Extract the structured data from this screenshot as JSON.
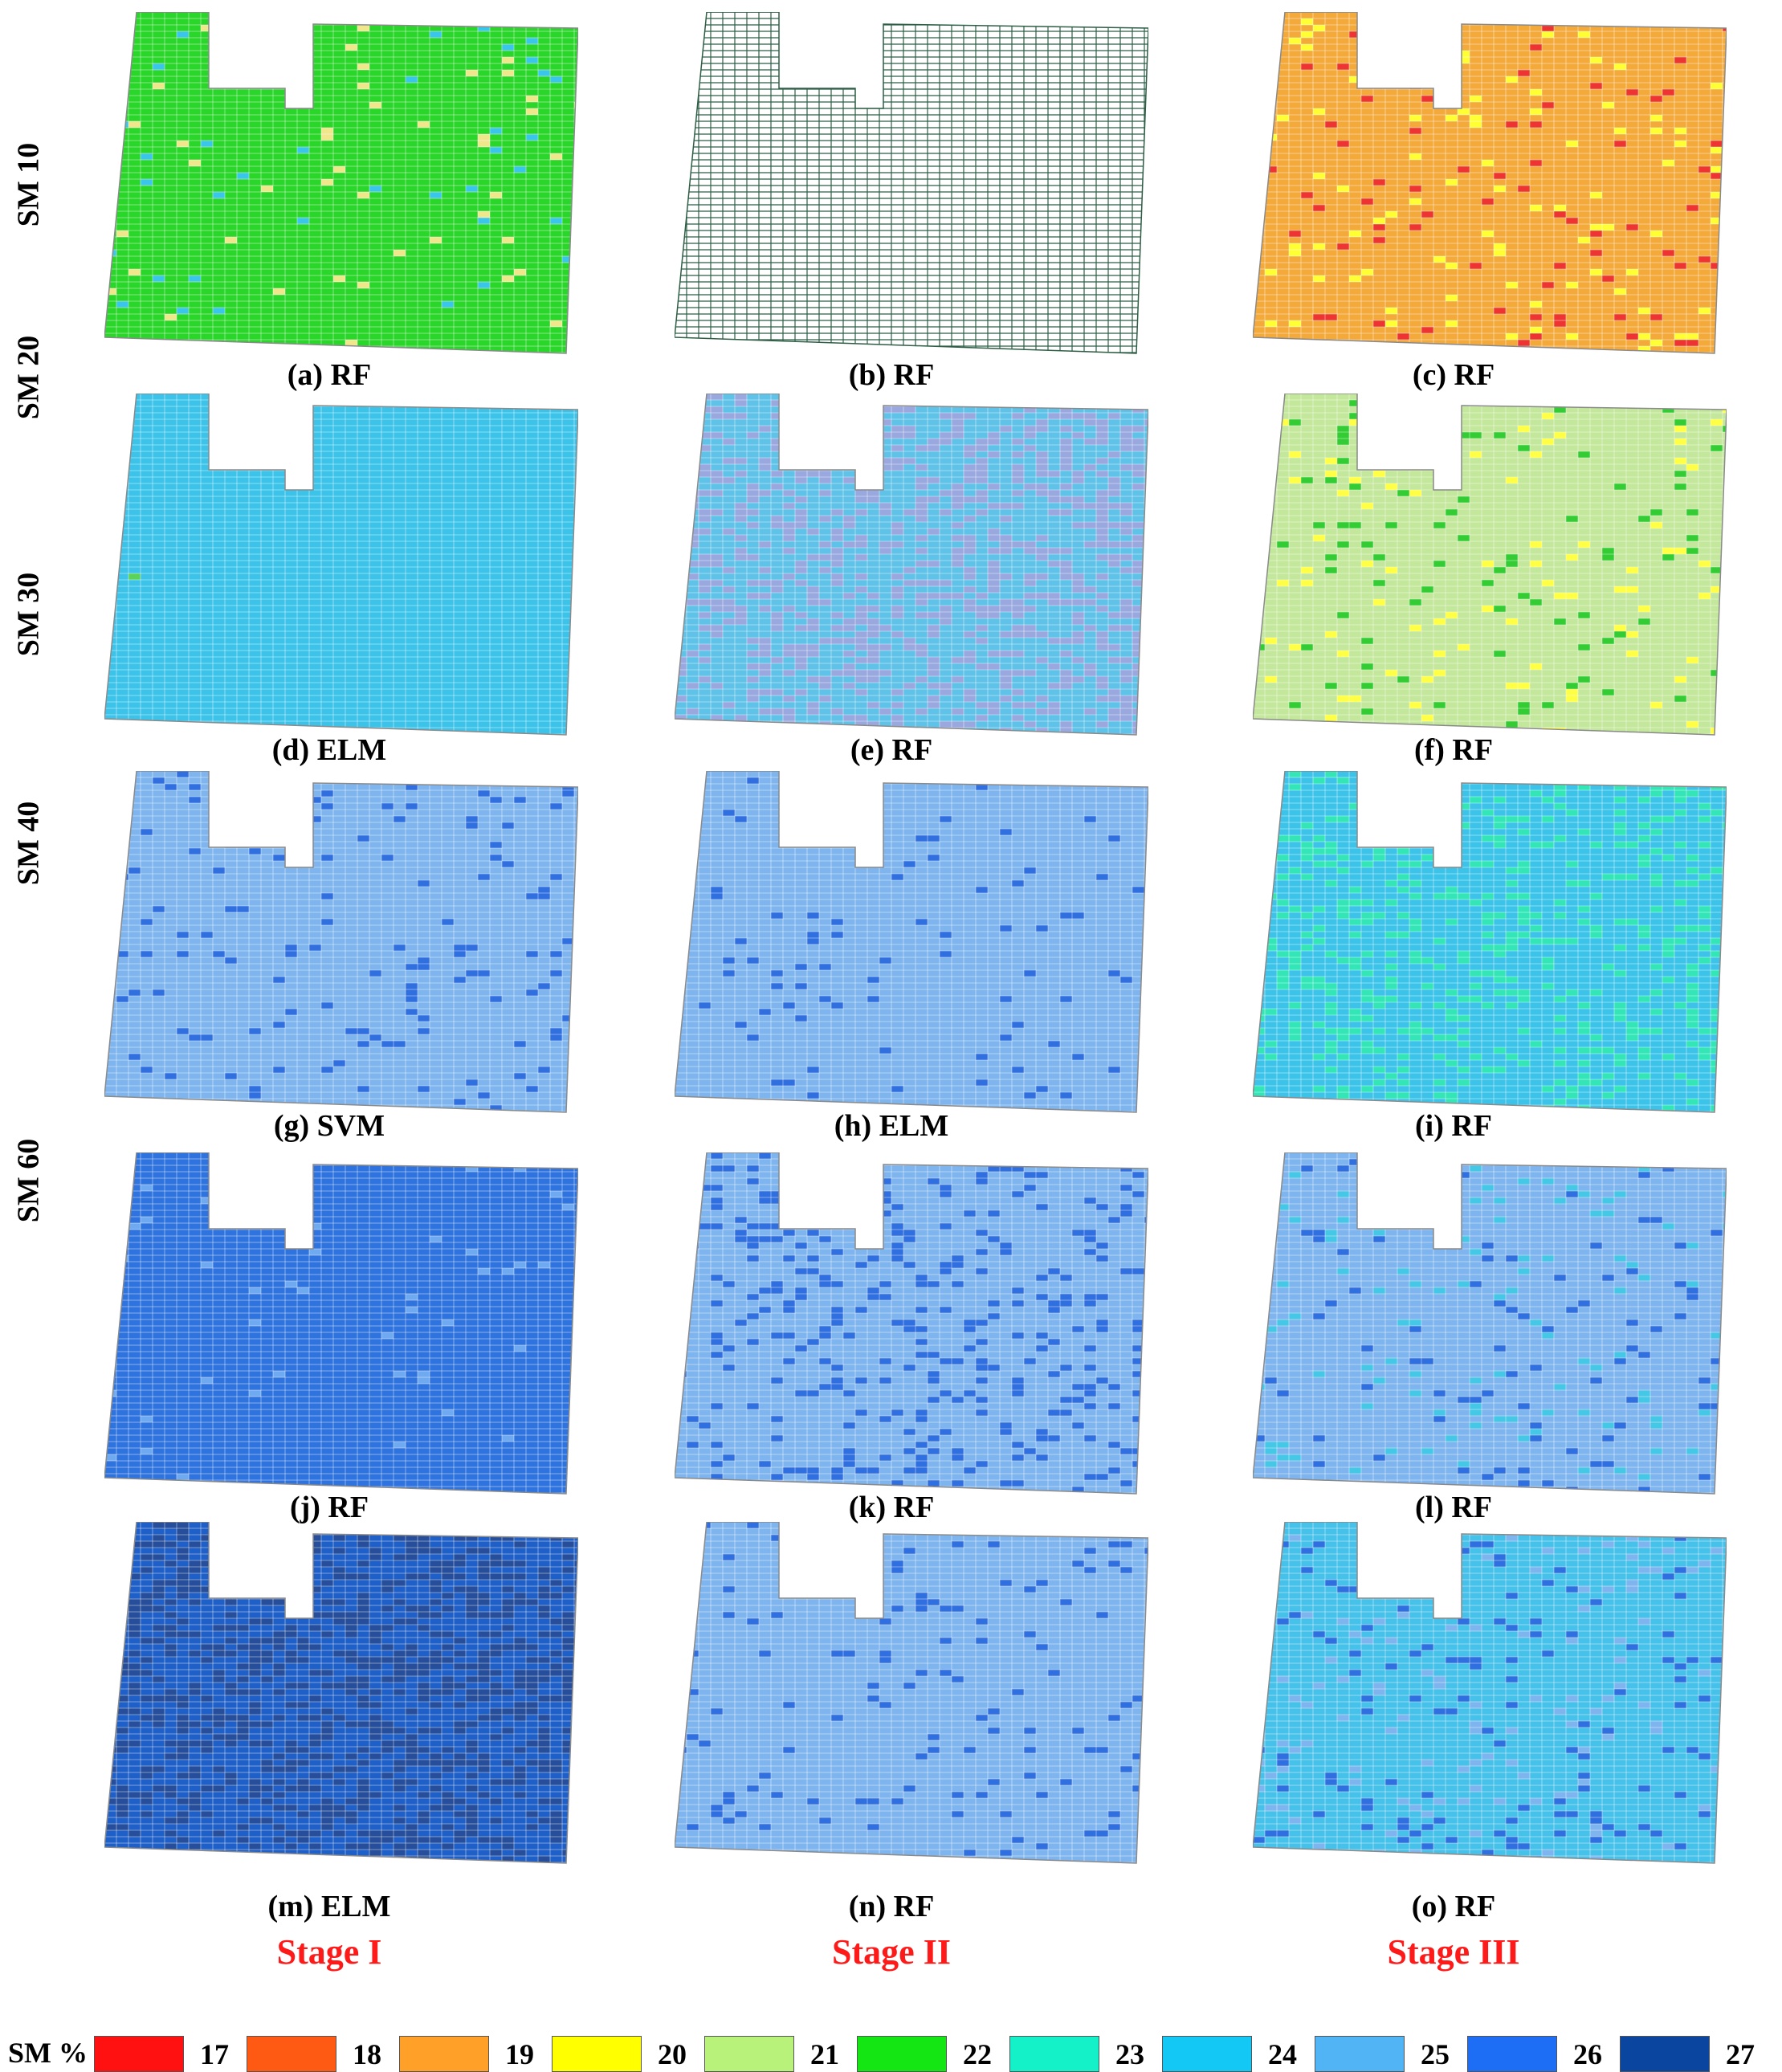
{
  "rows": [
    "SM 10",
    "SM 20",
    "SM 30",
    "SM 40",
    "SM 60"
  ],
  "stages": [
    "Stage I",
    "Stage II",
    "Stage III"
  ],
  "stage_color": "#ff1a1a",
  "panels": [
    {
      "label": "(a) RF",
      "base": "#2ad62a",
      "accents": [
        "#f0e68c",
        "#39c6ea"
      ],
      "rate": 0.03
    },
    {
      "label": "(b) RF",
      "base": "#ffffff",
      "accents": [],
      "rate": 0.0,
      "outline": "#2e5e46"
    },
    {
      "label": "(c) RF",
      "base": "#f4a93b",
      "accents": [
        "#ee3333",
        "#ffff33"
      ],
      "rate": 0.08
    },
    {
      "label": "(d) ELM",
      "base": "#3cc3ea",
      "accents": [
        "#5ad35a"
      ],
      "rate": 0.002
    },
    {
      "label": "(e) RF",
      "base": "#5fc2e8",
      "accents": [
        "#9aa8e0"
      ],
      "rate": 0.35
    },
    {
      "label": "(f) RF",
      "base": "#c3e79b",
      "accents": [
        "#ffff44",
        "#33cc33"
      ],
      "rate": 0.1
    },
    {
      "label": "(g) SVM",
      "base": "#7fb5ee",
      "accents": [
        "#2f6fe0"
      ],
      "rate": 0.07
    },
    {
      "label": "(h) ELM",
      "base": "#7fb5ee",
      "accents": [
        "#2f6fe0"
      ],
      "rate": 0.04
    },
    {
      "label": "(i) RF",
      "base": "#3cc3ea",
      "accents": [
        "#33e6b8"
      ],
      "rate": 0.2
    },
    {
      "label": "(j) RF",
      "base": "#2f73df",
      "accents": [
        "#6fa9ef"
      ],
      "rate": 0.02
    },
    {
      "label": "(k) RF",
      "base": "#7fb5ee",
      "accents": [
        "#2f6fe0"
      ],
      "rate": 0.14
    },
    {
      "label": "(l) RF",
      "base": "#7fb5ee",
      "accents": [
        "#2f6fe0",
        "#45c7e6"
      ],
      "rate": 0.1
    },
    {
      "label": "(m) ELM",
      "base": "#1f5fc8",
      "accents": [
        "#264e9a"
      ],
      "rate": 0.35
    },
    {
      "label": "(n) RF",
      "base": "#7fb5ee",
      "accents": [
        "#2f6fe0"
      ],
      "rate": 0.05
    },
    {
      "label": "(o) RF",
      "base": "#45c1ea",
      "accents": [
        "#7fb5ee",
        "#2f6fe0"
      ],
      "rate": 0.12
    }
  ],
  "legend": {
    "title": "SM %",
    "items": [
      {
        "value": "17",
        "color": "#ff1111"
      },
      {
        "value": "18",
        "color": "#ff5a14"
      },
      {
        "value": "19",
        "color": "#ffa028"
      },
      {
        "value": "20",
        "color": "#ffff00"
      },
      {
        "value": "21",
        "color": "#b9f27a"
      },
      {
        "value": "22",
        "color": "#14e614"
      },
      {
        "value": "23",
        "color": "#14f0c8"
      },
      {
        "value": "24",
        "color": "#14c8f5"
      },
      {
        "value": "25",
        "color": "#50b4f5"
      },
      {
        "value": "26",
        "color": "#1e6ef5"
      },
      {
        "value": "27",
        "color": "#0a46a0"
      }
    ]
  }
}
